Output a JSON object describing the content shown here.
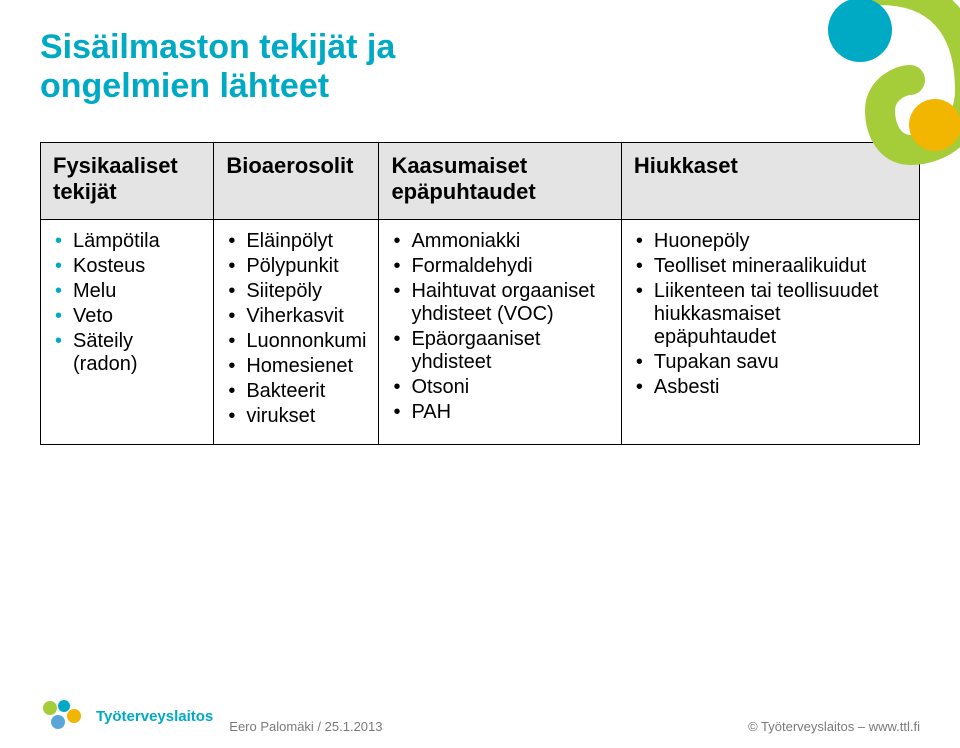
{
  "title": {
    "line1": "Sisäilmaston tekijät ja",
    "line2": "ongelmien lähteet",
    "color": "#00aac4",
    "fontsize": 34
  },
  "table": {
    "header_bg": "#e4e4e4",
    "header_fontsize": 22,
    "cell_fontsize": 20,
    "bullet_color_col1": "#00aac4",
    "bullet_color_default": "#000000",
    "columns": [
      "Fysikaaliset tekijät",
      "Bioaerosolit",
      "Kaasumaiset epäpuhtaudet",
      "Hiukkaset"
    ],
    "rows": [
      [
        "Lämpötila",
        "Kosteus",
        "Melu",
        "Veto",
        "Säteily (radon)"
      ],
      [
        "Eläinpölyt",
        "Pölypunkit",
        "Siitepöly",
        "Viherkasvit",
        "Luonnonkumi",
        "Homesienet",
        "Bakteerit",
        "virukset"
      ],
      [
        "Ammoniakki",
        "Formaldehydi",
        "Haihtuvat orgaaniset yhdisteet (VOC)",
        "Epäorgaaniset yhdisteet",
        "Otsoni",
        "PAH"
      ],
      [
        "Huonepöly",
        "Teolliset mineraalikuidut",
        "Liikenteen tai teollisuudet hiukkasmaiset epäpuhtaudet",
        "Tupakan savu",
        "Asbesti"
      ]
    ]
  },
  "footer": {
    "logo_text": "Työterveyslaitos",
    "author_date": "Eero Palomäki / 25.1.2013",
    "copyright": "© Työterveyslaitos   –   www.ttl.fi",
    "fontsize": 13,
    "color": "#7a7a7a"
  },
  "decor": {
    "green": "#a4cd39",
    "teal": "#00aac4",
    "yellow": "#f2b600"
  },
  "logo_colors": {
    "dot1": "#a4cd39",
    "dot2": "#00aac4",
    "dot3": "#f2b600",
    "dot4": "#5aa6d8"
  }
}
